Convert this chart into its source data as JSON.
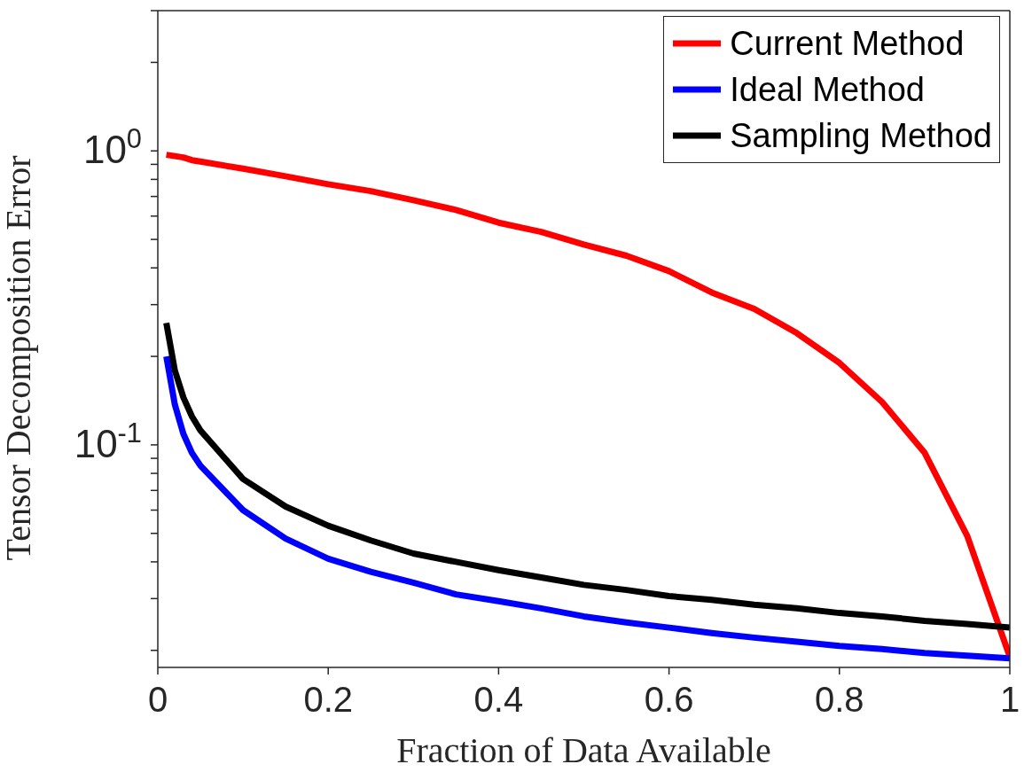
{
  "chart_data": {
    "type": "line",
    "xlabel": "Fraction of Data Available",
    "ylabel": "Tensor Decomposition Error",
    "x": [
      0.01,
      0.02,
      0.03,
      0.04,
      0.05,
      0.1,
      0.15,
      0.2,
      0.25,
      0.3,
      0.35,
      0.4,
      0.45,
      0.5,
      0.55,
      0.6,
      0.65,
      0.7,
      0.75,
      0.8,
      0.85,
      0.9,
      0.95,
      1.0
    ],
    "series": [
      {
        "name": "Current Method",
        "color": "#ff0000",
        "values": [
          0.97,
          0.96,
          0.95,
          0.93,
          0.92,
          0.87,
          0.82,
          0.77,
          0.73,
          0.68,
          0.63,
          0.57,
          0.53,
          0.48,
          0.44,
          0.39,
          0.33,
          0.29,
          0.24,
          0.19,
          0.14,
          0.094,
          0.049,
          0.019
        ]
      },
      {
        "name": "Ideal Method",
        "color": "#0000ff",
        "values": [
          0.2,
          0.137,
          0.109,
          0.094,
          0.085,
          0.06,
          0.048,
          0.041,
          0.037,
          0.034,
          0.031,
          0.0294,
          0.0278,
          0.0261,
          0.0249,
          0.0239,
          0.0229,
          0.0221,
          0.0214,
          0.0207,
          0.0202,
          0.0196,
          0.0192,
          0.0188
        ]
      },
      {
        "name": "Sampling Method",
        "color": "#000000",
        "values": [
          0.26,
          0.179,
          0.145,
          0.125,
          0.112,
          0.0766,
          0.0617,
          0.0531,
          0.0473,
          0.0427,
          0.04,
          0.0375,
          0.0354,
          0.0334,
          0.0321,
          0.0306,
          0.0297,
          0.0286,
          0.0278,
          0.0268,
          0.0261,
          0.0252,
          0.0246,
          0.0239
        ]
      }
    ],
    "xlim": [
      0,
      1
    ],
    "xticks": [
      0,
      0.2,
      0.4,
      0.6,
      0.8,
      1
    ],
    "ylim": [
      0.0175,
      3
    ],
    "log": "y",
    "yticks": [
      {
        "value": 0.02,
        "label": null
      },
      {
        "value": 0.03,
        "label": null
      },
      {
        "value": 0.04,
        "label": null
      },
      {
        "value": 0.05,
        "label": null
      },
      {
        "value": 0.06,
        "label": null
      },
      {
        "value": 0.07,
        "label": null
      },
      {
        "value": 0.08,
        "label": null
      },
      {
        "value": 0.09,
        "label": null
      },
      {
        "value": 0.1,
        "label": "10$^{-1}$"
      },
      {
        "value": 0.2,
        "label": null
      },
      {
        "value": 0.3,
        "label": null
      },
      {
        "value": 0.4,
        "label": null
      },
      {
        "value": 0.5,
        "label": null
      },
      {
        "value": 0.6,
        "label": null
      },
      {
        "value": 0.7,
        "label": null
      },
      {
        "value": 0.8,
        "label": null
      },
      {
        "value": 0.9,
        "label": null
      },
      {
        "value": 1,
        "label": "10$^{0}$"
      },
      {
        "value": 2,
        "label": null
      },
      {
        "value": 3,
        "label": null
      }
    ],
    "grid": false,
    "legend": "top right",
    "marker": "none",
    "line_style": "solid"
  }
}
